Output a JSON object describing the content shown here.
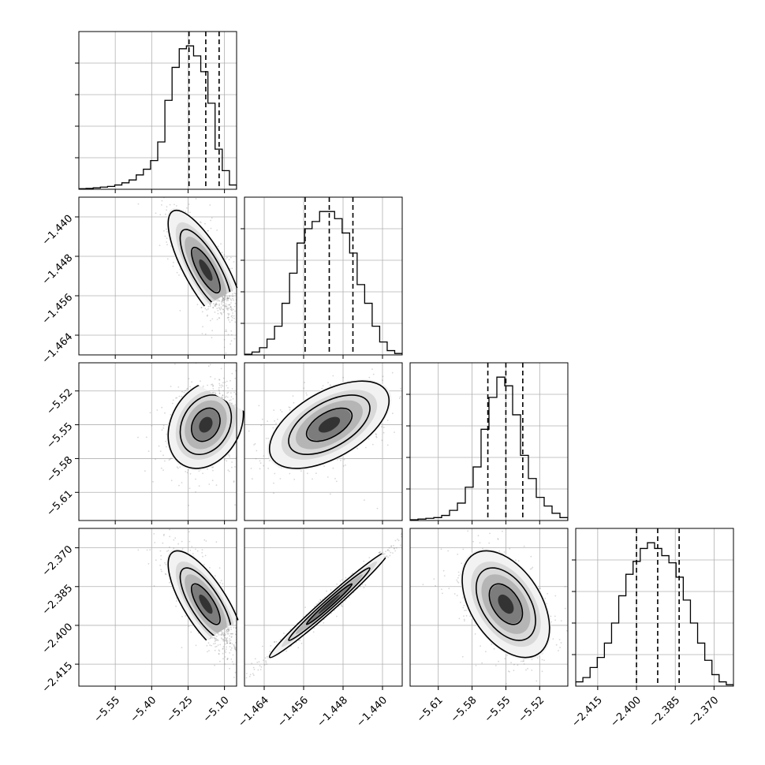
{
  "chart_data": {
    "type": "corner",
    "grid": true,
    "parameters": [
      {
        "range": [
          -5.7,
          -5.05
        ],
        "ticks": [
          -5.55,
          -5.4,
          -5.25,
          -5.1
        ],
        "tick_labels": [
          "−5.55",
          "−5.40",
          "−5.25",
          "−5.10"
        ],
        "quantiles": [
          -5.246,
          -5.177,
          -5.122
        ],
        "hist": [
          0.004,
          0.006,
          0.01,
          0.015,
          0.02,
          0.03,
          0.045,
          0.065,
          0.1,
          0.14,
          0.2,
          0.33,
          0.62,
          0.85,
          0.98,
          1.0,
          0.93,
          0.82,
          0.6,
          0.28,
          0.13,
          0.03
        ]
      },
      {
        "range": [
          -1.468,
          -1.436
        ],
        "ticks": [
          -1.464,
          -1.456,
          -1.448,
          -1.44
        ],
        "tick_labels": [
          "−1.464",
          "−1.456",
          "−1.448",
          "−1.440"
        ],
        "quantiles": [
          -1.4557,
          -1.4508,
          -1.446
        ],
        "hist": [
          0.005,
          0.02,
          0.05,
          0.11,
          0.2,
          0.36,
          0.57,
          0.78,
          0.88,
          0.93,
          1.0,
          1.0,
          0.95,
          0.85,
          0.71,
          0.49,
          0.36,
          0.2,
          0.09,
          0.03,
          0.01
        ]
      },
      {
        "range": [
          -5.635,
          -5.495
        ],
        "ticks": [
          -5.61,
          -5.58,
          -5.55,
          -5.52
        ],
        "tick_labels": [
          "−5.61",
          "−5.58",
          "−5.55",
          "−5.52"
        ],
        "quantiles": [
          -5.566,
          -5.55,
          -5.535
        ],
        "hist": [
          0.005,
          0.01,
          0.015,
          0.02,
          0.035,
          0.07,
          0.12,
          0.23,
          0.37,
          0.63,
          0.85,
          0.99,
          0.93,
          0.73,
          0.45,
          0.29,
          0.16,
          0.1,
          0.05,
          0.02
        ]
      },
      {
        "range": [
          -2.4235,
          -2.3625
        ],
        "ticks": [
          -2.415,
          -2.4,
          -2.385,
          -2.37
        ],
        "tick_labels": [
          "−2.415",
          "−2.400",
          "−2.385",
          "−2.370"
        ],
        "quantiles": [
          -2.4,
          -2.3918,
          -2.3835
        ],
        "hist": [
          0.03,
          0.06,
          0.13,
          0.2,
          0.3,
          0.44,
          0.63,
          0.78,
          0.87,
          0.96,
          1.0,
          0.96,
          0.91,
          0.86,
          0.76,
          0.6,
          0.44,
          0.3,
          0.18,
          0.08,
          0.03,
          0.01
        ]
      }
    ],
    "pairs": [
      {
        "x": 0,
        "y": 1,
        "corr": -0.78
      },
      {
        "x": 0,
        "y": 2,
        "corr": 0.25
      },
      {
        "x": 1,
        "y": 2,
        "corr": 0.55
      },
      {
        "x": 0,
        "y": 3,
        "corr": -0.75
      },
      {
        "x": 1,
        "y": 3,
        "corr": 0.985
      },
      {
        "x": 2,
        "y": 3,
        "corr": -0.45
      }
    ],
    "colors": {
      "points": "#6e6e6e",
      "lines": "#000000",
      "grid": "#b0b0b0"
    }
  }
}
